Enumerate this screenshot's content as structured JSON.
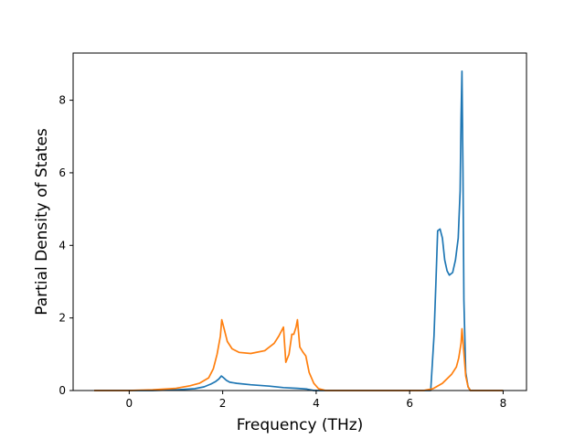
{
  "chart_data": {
    "type": "line",
    "title": "",
    "xlabel": "Frequency (THz)",
    "ylabel": "Partial Density of States",
    "xlim": [
      -1.2,
      8.5
    ],
    "ylim": [
      0,
      9.3
    ],
    "xticks": [
      0,
      2,
      4,
      6,
      8
    ],
    "yticks": [
      0,
      2,
      4,
      6,
      8
    ],
    "grid": false,
    "series": [
      {
        "color": "#1f77b4",
        "x": [
          -0.75,
          0.5,
          1.0,
          1.4,
          1.6,
          1.75,
          1.85,
          1.92,
          1.97,
          2.02,
          2.08,
          2.15,
          2.3,
          2.6,
          3.0,
          3.3,
          3.6,
          3.8,
          3.95,
          4.2,
          6.45,
          6.52,
          6.56,
          6.6,
          6.65,
          6.7,
          6.75,
          6.8,
          6.85,
          6.92,
          6.98,
          7.04,
          7.08,
          7.1,
          7.12,
          7.14,
          7.16,
          7.2,
          7.25,
          7.3,
          8.0
        ],
        "y": [
          0,
          0,
          0.02,
          0.05,
          0.1,
          0.18,
          0.25,
          0.32,
          0.4,
          0.35,
          0.28,
          0.23,
          0.2,
          0.16,
          0.12,
          0.08,
          0.06,
          0.04,
          0.0,
          0,
          0,
          1.5,
          2.9,
          4.4,
          4.45,
          4.2,
          3.6,
          3.3,
          3.18,
          3.25,
          3.6,
          4.2,
          5.5,
          7.5,
          8.8,
          6.0,
          2.5,
          0.5,
          0.1,
          0,
          0
        ]
      },
      {
        "color": "#ff7f0e",
        "x": [
          -0.75,
          0.0,
          0.5,
          1.0,
          1.3,
          1.5,
          1.7,
          1.8,
          1.88,
          1.95,
          1.98,
          2.03,
          2.1,
          2.2,
          2.35,
          2.6,
          2.9,
          3.1,
          3.2,
          3.3,
          3.35,
          3.42,
          3.48,
          3.52,
          3.57,
          3.6,
          3.65,
          3.72,
          3.78,
          3.85,
          3.95,
          4.05,
          4.2,
          6.3,
          6.5,
          6.7,
          6.9,
          7.0,
          7.05,
          7.1,
          7.12,
          7.15,
          7.2,
          7.25,
          7.3,
          8.0
        ],
        "y": [
          0,
          0,
          0.02,
          0.06,
          0.13,
          0.2,
          0.35,
          0.6,
          1.0,
          1.5,
          1.95,
          1.7,
          1.35,
          1.15,
          1.05,
          1.02,
          1.1,
          1.3,
          1.5,
          1.75,
          0.78,
          1.0,
          1.55,
          1.55,
          1.75,
          1.95,
          1.2,
          1.05,
          0.95,
          0.5,
          0.2,
          0.05,
          0,
          0,
          0.05,
          0.2,
          0.45,
          0.65,
          0.9,
          1.3,
          1.7,
          1.2,
          0.4,
          0.1,
          0,
          0
        ]
      }
    ]
  }
}
